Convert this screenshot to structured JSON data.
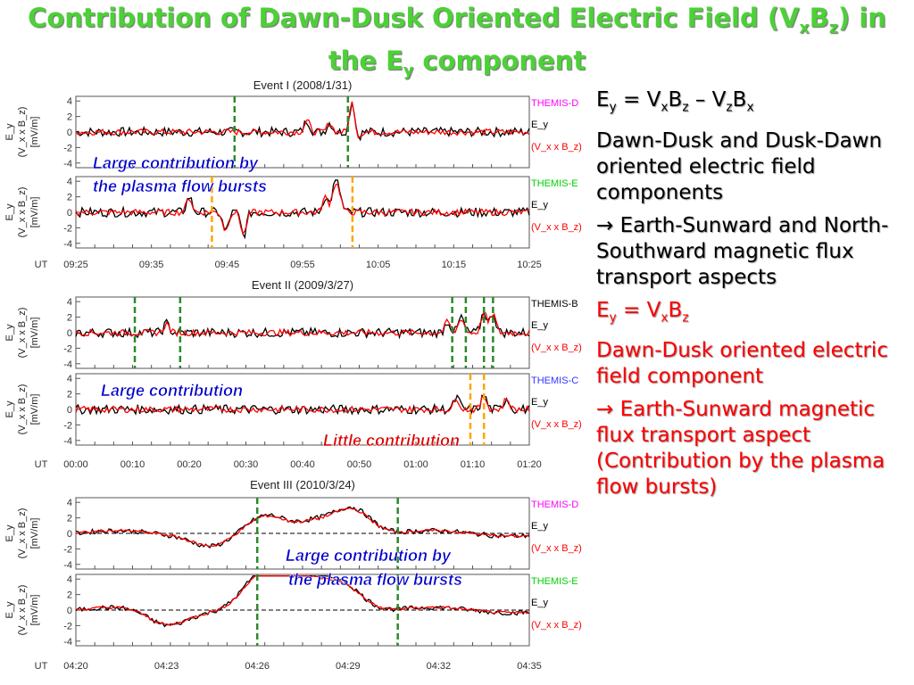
{
  "slide": {
    "title_line1": "Contribution of Dawn-Dusk Oriented Electric Field (VₓB_z) in",
    "title_line2": "the E_y component"
  },
  "equation1": "Eᵧ = VₓB_z – V_zBₓ",
  "text1": "Dawn-Dusk and Dusk-Dawn oriented electric field components",
  "text2": "→ Earth-Sunward and North-Southward magnetic flux transport aspects",
  "equation2": "Eᵧ = VₓB_z",
  "text3": "Dawn-Dusk oriented electric field component",
  "text4": "→ Earth-Sunward magnetic flux transport aspect (Contribution by the plasma flow bursts)",
  "colors": {
    "title": "#4cd137",
    "observed": "#000000",
    "vxbz": "#ff0000",
    "green_line": "#2a8a2a",
    "orange_line": "#ffa500",
    "themis_d": "#ff00ff",
    "themis_e": "#00d000",
    "themis_b": "#000000",
    "themis_c": "#3333ff",
    "annotation": "#0000cc"
  },
  "events": [
    {
      "title": "Event I (2008/1/31)",
      "x_ticks": [
        "09:25",
        "09:35",
        "09:45",
        "09:55",
        "10:05",
        "10:15",
        "10:25"
      ],
      "panels": [
        {
          "probe": "THEMIS-D",
          "annotation": ""
        },
        {
          "probe": "THEMIS-E",
          "annotation": "Large contribution by the plasma flow bursts"
        }
      ]
    },
    {
      "title": "Event II (2009/3/27)",
      "x_ticks": [
        "00:00",
        "00:10",
        "00:20",
        "00:30",
        "00:40",
        "00:50",
        "01:00",
        "01:10",
        "01:20"
      ],
      "panels": [
        {
          "probe": "THEMIS-B",
          "annotation": ""
        },
        {
          "probe": "THEMIS-C",
          "annotation": "Large contribution",
          "annotation2": "Little contribution"
        }
      ]
    },
    {
      "title": "Event III (2010/3/24)",
      "x_ticks": [
        "04:20",
        "04:23",
        "04:26",
        "04:29",
        "04:32",
        "04:35"
      ],
      "panels": [
        {
          "probe": "THEMIS-D",
          "annotation": "Large contribution by the plasma flow bursts"
        },
        {
          "probe": "THEMIS-E",
          "annotation": ""
        }
      ]
    }
  ],
  "axis": {
    "y_ticks": [
      "4",
      "2",
      "0",
      "-2",
      "-4"
    ],
    "ylabel_line1": "E_y",
    "ylabel_line2": "(V_x x B_z)",
    "ylabel_line3": "[mV/m]",
    "legend_ey": "E_y",
    "legend_vxbz": "(V_x x B_z)",
    "ut_label": "UT"
  }
}
